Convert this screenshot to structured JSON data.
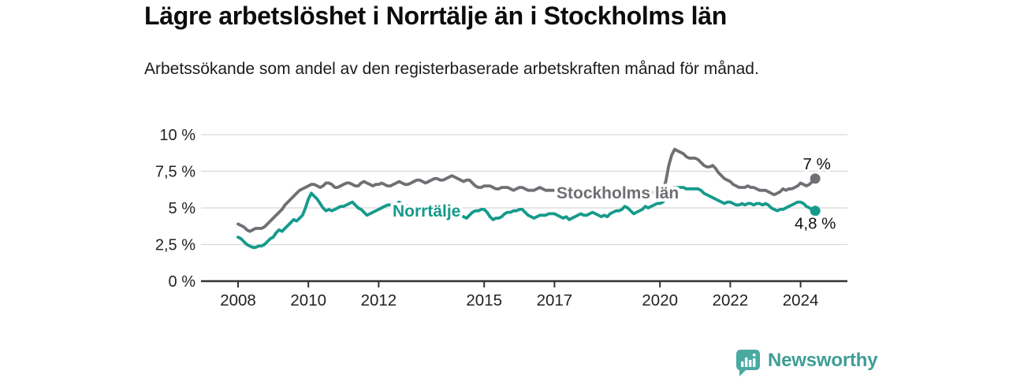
{
  "header": {
    "title": "Lägre arbetslöshet i Norrtälje än i Stockholms län",
    "subtitle": "Arbetssökande som andel av den registerbaserade arbetskraften månad för månad."
  },
  "footer": {
    "brand": "Newsworthy"
  },
  "colors": {
    "norrtalje_line": "#159a8b",
    "stockholm_line": "#6f6f74",
    "grid": "#d8d8d8",
    "axis": "#333333",
    "tick_text": "#222222",
    "end_label_text": "#111111",
    "logo_bubble": "#4aa9a2",
    "logo_text": "#3f9e97"
  },
  "chart_data": {
    "type": "line",
    "title": "Lägre arbetslöshet i Norrtälje än i Stockholms län",
    "subtitle": "Arbetssökande som andel av den registerbaserade arbetskraften månad för månad.",
    "x_start": "2008-01",
    "x_end": "2024-06",
    "frequency": "monthly",
    "grid": "horizontal-only",
    "legend": "inline-labels-on-lines",
    "ylim": [
      0,
      10.5
    ],
    "y_ticks": [
      {
        "value": 0,
        "label": "0 %"
      },
      {
        "value": 2.5,
        "label": "2,5 %"
      },
      {
        "value": 5,
        "label": "5 %"
      },
      {
        "value": 7.5,
        "label": "7,5 %"
      },
      {
        "value": 10,
        "label": "10 %"
      }
    ],
    "x_ticks": [
      {
        "year": 2008,
        "label": "2008"
      },
      {
        "year": 2010,
        "label": "2010"
      },
      {
        "year": 2012,
        "label": "2012"
      },
      {
        "year": 2015,
        "label": "2015"
      },
      {
        "year": 2017,
        "label": "2017"
      },
      {
        "year": 2020,
        "label": "2020"
      },
      {
        "year": 2022,
        "label": "2022"
      },
      {
        "year": 2024,
        "label": "2024"
      }
    ],
    "series": [
      {
        "name": "Stockholms län",
        "color": "#6f6f74",
        "end_label": "7 %",
        "end_value": 7.0,
        "values": [
          3.9,
          3.8,
          3.7,
          3.5,
          3.4,
          3.5,
          3.6,
          3.6,
          3.6,
          3.7,
          3.9,
          4.1,
          4.3,
          4.5,
          4.7,
          4.9,
          5.2,
          5.4,
          5.6,
          5.8,
          6.0,
          6.2,
          6.3,
          6.4,
          6.5,
          6.6,
          6.6,
          6.5,
          6.4,
          6.5,
          6.7,
          6.7,
          6.6,
          6.4,
          6.4,
          6.5,
          6.6,
          6.7,
          6.7,
          6.6,
          6.5,
          6.5,
          6.7,
          6.8,
          6.7,
          6.6,
          6.5,
          6.6,
          6.6,
          6.7,
          6.6,
          6.5,
          6.5,
          6.6,
          6.7,
          6.8,
          6.7,
          6.6,
          6.6,
          6.7,
          6.8,
          6.9,
          6.9,
          6.8,
          6.7,
          6.8,
          6.9,
          7.0,
          7.0,
          6.9,
          6.9,
          7.0,
          7.1,
          7.2,
          7.1,
          7.0,
          6.9,
          6.8,
          6.9,
          6.9,
          6.7,
          6.5,
          6.4,
          6.4,
          6.5,
          6.5,
          6.5,
          6.4,
          6.3,
          6.3,
          6.4,
          6.4,
          6.4,
          6.3,
          6.2,
          6.3,
          6.4,
          6.4,
          6.3,
          6.2,
          6.2,
          6.2,
          6.3,
          6.4,
          6.3,
          6.2,
          6.2,
          6.2,
          6.2,
          6.2,
          6.1,
          6.1,
          6.0,
          6.1,
          6.2,
          6.2,
          6.1,
          6.0,
          6.0,
          6.1,
          6.1,
          6.1,
          6.0,
          5.9,
          5.9,
          5.9,
          6.0,
          6.0,
          5.9,
          5.8,
          5.8,
          5.9,
          6.0,
          6.0,
          5.9,
          5.9,
          5.9,
          6.0,
          6.1,
          6.1,
          6.0,
          6.0,
          6.1,
          6.1,
          6.2,
          6.2,
          6.8,
          7.9,
          8.6,
          9.0,
          8.9,
          8.8,
          8.7,
          8.5,
          8.4,
          8.4,
          8.4,
          8.3,
          8.1,
          7.9,
          7.8,
          7.8,
          7.9,
          7.7,
          7.4,
          7.2,
          7.0,
          6.9,
          6.8,
          6.6,
          6.5,
          6.4,
          6.4,
          6.4,
          6.5,
          6.4,
          6.4,
          6.3,
          6.2,
          6.2,
          6.2,
          6.1,
          6.0,
          5.9,
          6.0,
          6.1,
          6.3,
          6.2,
          6.3,
          6.3,
          6.4,
          6.5,
          6.7,
          6.6,
          6.5,
          6.6,
          6.8,
          7.0
        ]
      },
      {
        "name": "Norrtälje",
        "color": "#159a8b",
        "end_label": "4,8 %",
        "end_value": 4.8,
        "values": [
          3.0,
          2.9,
          2.7,
          2.5,
          2.4,
          2.3,
          2.3,
          2.4,
          2.4,
          2.5,
          2.7,
          2.9,
          3.0,
          3.3,
          3.5,
          3.4,
          3.6,
          3.8,
          4.0,
          4.2,
          4.1,
          4.3,
          4.5,
          5.0,
          5.6,
          6.0,
          5.8,
          5.6,
          5.3,
          5.0,
          4.8,
          4.9,
          4.8,
          4.9,
          5.0,
          5.1,
          5.1,
          5.2,
          5.3,
          5.4,
          5.2,
          5.0,
          4.9,
          4.7,
          4.5,
          4.6,
          4.7,
          4.8,
          4.9,
          5.0,
          5.1,
          5.2,
          5.2,
          5.3,
          5.3,
          5.4,
          5.3,
          5.2,
          5.1,
          5.1,
          5.0,
          5.1,
          5.0,
          4.9,
          4.8,
          4.8,
          4.9,
          5.0,
          4.9,
          4.8,
          4.7,
          4.7,
          4.7,
          4.8,
          4.7,
          4.6,
          4.5,
          4.4,
          4.3,
          4.5,
          4.7,
          4.8,
          4.8,
          4.9,
          4.9,
          4.7,
          4.4,
          4.2,
          4.3,
          4.3,
          4.4,
          4.6,
          4.7,
          4.7,
          4.8,
          4.8,
          4.9,
          4.9,
          4.7,
          4.5,
          4.4,
          4.3,
          4.4,
          4.5,
          4.5,
          4.5,
          4.6,
          4.6,
          4.6,
          4.5,
          4.4,
          4.3,
          4.4,
          4.2,
          4.3,
          4.4,
          4.5,
          4.6,
          4.5,
          4.5,
          4.6,
          4.7,
          4.6,
          4.5,
          4.4,
          4.5,
          4.4,
          4.6,
          4.7,
          4.8,
          4.8,
          4.9,
          5.1,
          5.0,
          4.8,
          4.6,
          4.7,
          4.8,
          4.9,
          5.1,
          5.0,
          5.1,
          5.2,
          5.3,
          5.3,
          5.4,
          5.8,
          6.1,
          6.3,
          6.4,
          6.4,
          6.4,
          6.4,
          6.3,
          6.3,
          6.3,
          6.3,
          6.3,
          6.2,
          6.0,
          5.9,
          5.8,
          5.7,
          5.6,
          5.5,
          5.4,
          5.3,
          5.4,
          5.4,
          5.3,
          5.2,
          5.2,
          5.3,
          5.2,
          5.3,
          5.3,
          5.2,
          5.3,
          5.3,
          5.2,
          5.3,
          5.2,
          5.0,
          4.9,
          4.8,
          4.9,
          4.9,
          5.0,
          5.1,
          5.2,
          5.3,
          5.4,
          5.4,
          5.3,
          5.1,
          5.0,
          4.9,
          4.8
        ]
      }
    ]
  }
}
